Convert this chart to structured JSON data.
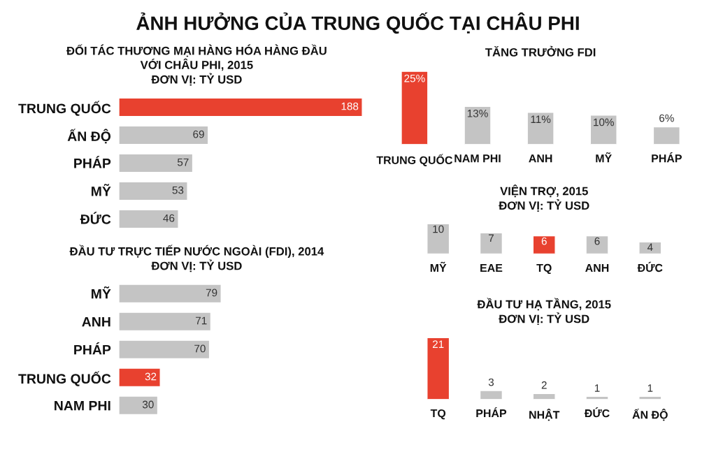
{
  "chart_data": [
    {
      "type": "other",
      "title": "ẢNH HƯỞNG CỦA TRUNG QUỐC TẠI CHÂU PHI"
    },
    {
      "type": "bar",
      "orientation": "horizontal",
      "title": "ĐỐI TÁC THƯƠNG MẠI HÀNG HÓA HÀNG ĐẦU\nVỚI CHÂU PHI, 2015\nĐƠN VỊ: TỶ USD",
      "categories": [
        "TRUNG QUỐC",
        "ẤN ĐỘ",
        "PHÁP",
        "MỸ",
        "ĐỨC"
      ],
      "values": [
        188,
        69,
        57,
        53,
        46
      ],
      "colors": [
        "#e8412f",
        "#c4c4c4",
        "#c4c4c4",
        "#c4c4c4",
        "#c4c4c4"
      ],
      "data_labels": true
    },
    {
      "type": "bar",
      "orientation": "horizontal",
      "title": "ĐẦU TƯ TRỰC TIẾP NƯỚC NGOÀI (FDI), 2014\nĐƠN VỊ: TỶ USD",
      "categories": [
        "MỸ",
        "ANH",
        "PHÁP",
        "TRUNG QUỐC",
        "NAM PHI"
      ],
      "values": [
        79,
        71,
        70,
        32,
        30
      ],
      "colors": [
        "#c4c4c4",
        "#c4c4c4",
        "#c4c4c4",
        "#e8412f",
        "#c4c4c4"
      ],
      "data_labels": true
    },
    {
      "type": "bar",
      "title": "TĂNG TRƯỞNG FDI",
      "categories": [
        "TRUNG QUỐC",
        "NAM PHI",
        "ANH",
        "MỸ",
        "PHÁP"
      ],
      "values": [
        25,
        13,
        11,
        10,
        6
      ],
      "value_labels": [
        "25%",
        "13%",
        "11%",
        "10%",
        "6%"
      ],
      "colors": [
        "#e8412f",
        "#c4c4c4",
        "#c4c4c4",
        "#c4c4c4",
        "#c4c4c4"
      ]
    },
    {
      "type": "bar",
      "title": "VIỆN TRỢ, 2015\nĐƠN VỊ: TỶ USD",
      "categories": [
        "MỸ",
        "EAE",
        "TQ",
        "ANH",
        "ĐỨC"
      ],
      "values": [
        10,
        7,
        6,
        6,
        4
      ],
      "colors": [
        "#c4c4c4",
        "#c4c4c4",
        "#e8412f",
        "#c4c4c4",
        "#c4c4c4"
      ],
      "data_labels": true
    },
    {
      "type": "bar",
      "title": "ĐẦU TƯ HẠ TẦNG, 2015\nĐƠN VỊ: TỶ USD",
      "categories": [
        "TQ",
        "PHÁP",
        "NHẬT",
        "ĐỨC",
        "ẤN ĐỘ"
      ],
      "values": [
        21,
        3,
        2,
        1,
        1
      ],
      "colors": [
        "#e8412f",
        "#c4c4c4",
        "#c4c4c4",
        "#c4c4c4",
        "#c4c4c4"
      ],
      "data_labels": true
    }
  ]
}
